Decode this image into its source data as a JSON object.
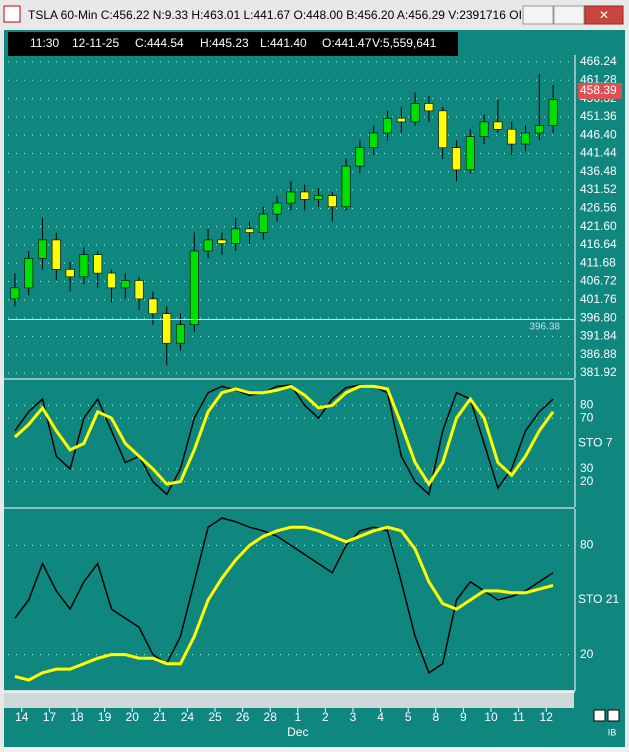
{
  "window": {
    "title": "TSLA 60-Min C:456.22 N:9.33 H:463.01 L:441.67 O:448.00 B:456.20 A:456.29 V:2391716 OI:0"
  },
  "info_bar": [
    "11:30",
    "12-11-25",
    "C:444.54",
    "H:445.23",
    "L:441.40",
    "O:441.47",
    "V:5,559,641"
  ],
  "x_axis": {
    "labels": [
      "14",
      "17",
      "18",
      "19",
      "20",
      "21",
      "24",
      "25",
      "26",
      "28",
      "1",
      "2",
      "3",
      "4",
      "5",
      "8",
      "9",
      "10",
      "11",
      "12"
    ],
    "month": "Dec"
  },
  "footer": "IB",
  "chart_data": [
    {
      "type": "candlestick",
      "up_color": "#00e000",
      "down_color": "#ffff00",
      "candles": [
        [
          402,
          409,
          400,
          405
        ],
        [
          405,
          415,
          403,
          413
        ],
        [
          413,
          424,
          410,
          418
        ],
        [
          418,
          420,
          407,
          410
        ],
        [
          410,
          412,
          404,
          408
        ],
        [
          408,
          416,
          406,
          414
        ],
        [
          414,
          415,
          405,
          409
        ],
        [
          409,
          410,
          401,
          405
        ],
        [
          405,
          409,
          402,
          407
        ],
        [
          407,
          408,
          399,
          402
        ],
        [
          402,
          404,
          395,
          398
        ],
        [
          398,
          400,
          384,
          390
        ],
        [
          390,
          398,
          388,
          395
        ],
        [
          395,
          420,
          393,
          415
        ],
        [
          415,
          421,
          413,
          418
        ],
        [
          418,
          420,
          414,
          417
        ],
        [
          417,
          424,
          415,
          421
        ],
        [
          421,
          423,
          417,
          420
        ],
        [
          420,
          427,
          418,
          425
        ],
        [
          425,
          430,
          423,
          428
        ],
        [
          428,
          434,
          426,
          431
        ],
        [
          431,
          433,
          426,
          429
        ],
        [
          429,
          432,
          427,
          430
        ],
        [
          430,
          431,
          423,
          427
        ],
        [
          427,
          440,
          426,
          438
        ],
        [
          438,
          445,
          436,
          443
        ],
        [
          443,
          449,
          441,
          447
        ],
        [
          447,
          453,
          445,
          451
        ],
        [
          451,
          454,
          447,
          450
        ],
        [
          450,
          458,
          449,
          455
        ],
        [
          455,
          457,
          450,
          453
        ],
        [
          453,
          454,
          440,
          443
        ],
        [
          443,
          445,
          434,
          437
        ],
        [
          437,
          448,
          436,
          446
        ],
        [
          446,
          452,
          444,
          450
        ],
        [
          450,
          456,
          447,
          448
        ],
        [
          448,
          450,
          441,
          444
        ],
        [
          444,
          449,
          442,
          447
        ],
        [
          447,
          463,
          445,
          449
        ],
        [
          449,
          460,
          447,
          456
        ]
      ],
      "ylim": [
        380.56,
        468.14
      ],
      "yticks": [
        466.24,
        461.28,
        456.32,
        451.36,
        {
          "value": 446.4,
          "label": "446.40"
        },
        441.44,
        436.48,
        431.52,
        426.56,
        {
          "value": 421.6,
          "label": "421.60"
        },
        416.64,
        411.68,
        406.72,
        401.76,
        {
          "value": 396.8,
          "label": "396.80"
        },
        391.84,
        386.88,
        381.92
      ],
      "last_price": 458.39,
      "cursor_value": {
        "value": 396.38,
        "label": "396.38"
      }
    },
    {
      "type": "line",
      "title": "STO 7",
      "series": [
        {
          "name": "K",
          "color": "#000000",
          "values": [
            60,
            75,
            85,
            40,
            30,
            70,
            85,
            60,
            35,
            40,
            20,
            10,
            30,
            70,
            90,
            95,
            92,
            88,
            90,
            95,
            96,
            80,
            70,
            85,
            94,
            96,
            95,
            90,
            40,
            20,
            10,
            60,
            90,
            85,
            50,
            15,
            30,
            60,
            75,
            85
          ]
        },
        {
          "name": "D",
          "color": "#ffff00",
          "values": [
            55,
            65,
            78,
            60,
            45,
            50,
            75,
            70,
            50,
            40,
            30,
            18,
            20,
            45,
            75,
            90,
            93,
            90,
            90,
            92,
            95,
            88,
            78,
            80,
            90,
            95,
            95,
            93,
            65,
            35,
            18,
            35,
            70,
            85,
            70,
            35,
            25,
            40,
            60,
            75
          ]
        }
      ],
      "ylim": [
        0,
        100
      ],
      "yticks": [
        80,
        70,
        30,
        20
      ]
    },
    {
      "type": "line",
      "title": "STO 21",
      "series": [
        {
          "name": "K",
          "color": "#000000",
          "values": [
            40,
            50,
            70,
            55,
            45,
            60,
            70,
            45,
            40,
            35,
            20,
            15,
            30,
            60,
            90,
            95,
            93,
            90,
            88,
            85,
            80,
            75,
            70,
            65,
            80,
            88,
            90,
            88,
            60,
            30,
            10,
            15,
            50,
            60,
            55,
            50,
            52,
            55,
            60,
            65
          ]
        },
        {
          "name": "D",
          "color": "#ffff00",
          "values": [
            8,
            6,
            10,
            12,
            12,
            15,
            18,
            20,
            20,
            18,
            18,
            15,
            15,
            30,
            50,
            62,
            72,
            80,
            85,
            88,
            90,
            90,
            88,
            85,
            82,
            85,
            88,
            90,
            88,
            78,
            60,
            48,
            45,
            50,
            55,
            55,
            54,
            54,
            56,
            58
          ]
        }
      ],
      "ylim": [
        0,
        100
      ],
      "yticks": [
        80,
        20
      ]
    }
  ]
}
